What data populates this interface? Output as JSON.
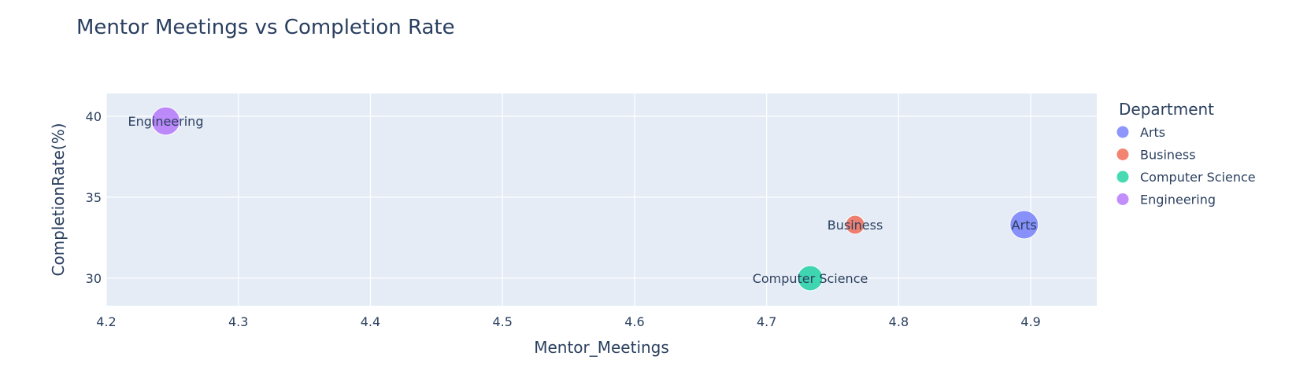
{
  "chart_data": {
    "type": "scatter",
    "title": "Mentor Meetings vs Completion Rate",
    "xlabel": "Mentor_Meetings",
    "ylabel": "CompletionRate(%)",
    "xlim": [
      4.2,
      4.95
    ],
    "ylim": [
      28.3,
      41.4
    ],
    "xticks": [
      4.2,
      4.3,
      4.4,
      4.5,
      4.6,
      4.7,
      4.8,
      4.9
    ],
    "xtick_labels": [
      "4.2",
      "4.3",
      "4.4",
      "4.5",
      "4.6",
      "4.7",
      "4.8",
      "4.9"
    ],
    "yticks": [
      30,
      35,
      40
    ],
    "ytick_labels": [
      "30",
      "35",
      "40"
    ],
    "grid": true,
    "legend": {
      "title": "Department",
      "placement": "right",
      "entries": [
        "Arts",
        "Business",
        "Computer Science",
        "Engineering"
      ]
    },
    "series": [
      {
        "name": "Arts",
        "color": "#636efa",
        "x": 4.895,
        "y": 33.3,
        "label": "Arts",
        "size_value": 36
      },
      {
        "name": "Business",
        "color": "#ef553b",
        "x": 4.767,
        "y": 33.3,
        "label": "Business",
        "size_value": 24
      },
      {
        "name": "Computer Science",
        "color": "#00cc96",
        "x": 4.733,
        "y": 30.0,
        "label": "Computer Science",
        "size_value": 32
      },
      {
        "name": "Engineering",
        "color": "#ab63fa",
        "x": 4.245,
        "y": 39.7,
        "label": "Engineering",
        "size_value": 36
      }
    ]
  }
}
